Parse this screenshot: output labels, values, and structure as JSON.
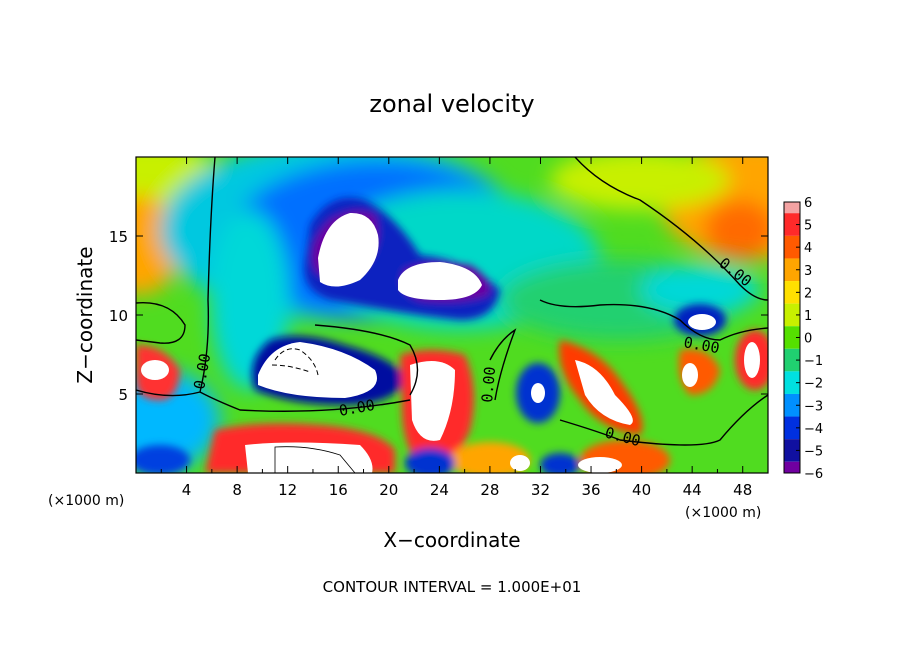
{
  "chart_data": {
    "type": "heatmap",
    "title": "zonal velocity",
    "xlabel": "X−coordinate",
    "ylabel": "Z−coordinate",
    "x_unit_label": "(×1000 m)",
    "x_unit_label_right": "(×1000 m)",
    "xlim": [
      0,
      50
    ],
    "ylim": [
      0,
      20
    ],
    "x_ticks": [
      "4",
      "8",
      "12",
      "16",
      "20",
      "24",
      "28",
      "32",
      "36",
      "40",
      "44",
      "48"
    ],
    "y_ticks": [
      "5",
      "10",
      "15"
    ],
    "colorbar": {
      "range": [
        -6,
        6
      ],
      "tick_labels": [
        "6",
        "5",
        "4",
        "3",
        "2",
        "1",
        "0",
        "−1",
        "−2",
        "−3",
        "−4",
        "−5",
        "−6"
      ],
      "colors": [
        "#f4a3a3",
        "#ff2a2a",
        "#ff5a00",
        "#ffa500",
        "#ffe000",
        "#c8f000",
        "#55e000",
        "#20d070",
        "#00e0e0",
        "#0090ff",
        "#0030e0",
        "#1010a0",
        "#7000a0"
      ]
    },
    "contour_labels": [
      "0.00",
      "0.00",
      "0.00",
      "0.00",
      "0.00",
      "0.00"
    ],
    "footer": "CONTOUR INTERVAL = 1.000E+01"
  }
}
